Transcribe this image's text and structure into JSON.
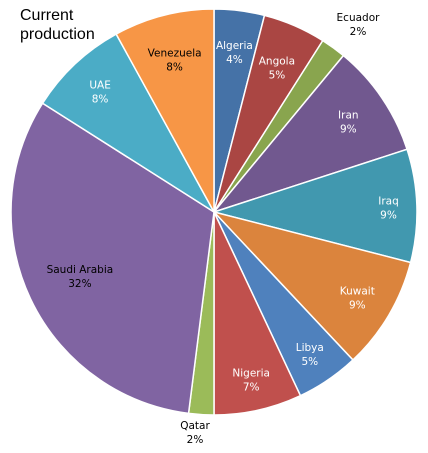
{
  "chart_data": {
    "type": "pie",
    "title": "Current production",
    "categories": [
      "Algeria",
      "Angola",
      "Ecuador",
      "Iran",
      "Iraq",
      "Kuwait",
      "Libya",
      "Nigeria",
      "Qatar",
      "Saudi Arabia",
      "UAE",
      "Venezuela"
    ],
    "values": [
      4,
      5,
      2,
      9,
      9,
      9,
      5,
      7,
      2,
      32,
      8,
      8
    ],
    "labels": [
      "4%",
      "5%",
      "2%",
      "9%",
      "9%",
      "9%",
      "5%",
      "7%",
      "2%",
      "32%",
      "8%",
      "8%"
    ],
    "colors": [
      "#4572A7",
      "#AA4643",
      "#89A54E",
      "#71588F",
      "#4198AF",
      "#DB843D",
      "#4F81BD",
      "#C0504D",
      "#9BBB59",
      "#8064A2",
      "#4BACC6",
      "#F79646"
    ],
    "start": "12 o'clock",
    "direction": "clockwise",
    "legend": "none"
  }
}
